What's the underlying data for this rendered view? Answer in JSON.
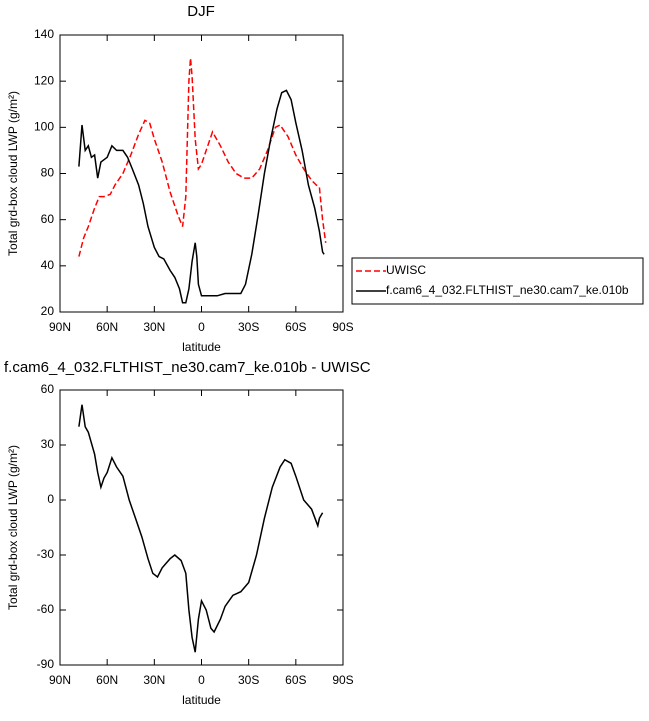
{
  "chart_data": [
    {
      "type": "line",
      "title": "DJF",
      "xlabel": "latitude",
      "ylabel": "Total grd-box cloud LWP (g/m²)",
      "xlim": [
        90,
        -90
      ],
      "xticks": [
        {
          "value": 90,
          "label": "90N"
        },
        {
          "value": 60,
          "label": "60N"
        },
        {
          "value": 30,
          "label": "30N"
        },
        0,
        {
          "value": -30,
          "label": "30S"
        },
        {
          "value": -60,
          "label": "60S"
        },
        {
          "value": -90,
          "label": "90S"
        }
      ],
      "ylim": [
        20,
        140
      ],
      "yticks": [
        20,
        40,
        60,
        80,
        100,
        120,
        140
      ],
      "series": [
        {
          "name": "UWISC",
          "color": "#ff0000",
          "dashed": true,
          "x": [
            78,
            75,
            72,
            68,
            65,
            62,
            58,
            55,
            50,
            45,
            40,
            36,
            33,
            30,
            25,
            20,
            15,
            12,
            10,
            8,
            7,
            6,
            4,
            2,
            0,
            -3,
            -7,
            -12,
            -17,
            -22,
            -27,
            -32,
            -37,
            -42,
            -47,
            -50,
            -55,
            -60,
            -65,
            -70,
            -73,
            -75,
            -77,
            -79
          ],
          "values": [
            44,
            52,
            57,
            65,
            70,
            70,
            71,
            75,
            80,
            88,
            97,
            103,
            102,
            95,
            85,
            72,
            62,
            57,
            70,
            120,
            130,
            122,
            95,
            82,
            84,
            90,
            98,
            92,
            85,
            80,
            78,
            78,
            82,
            90,
            100,
            101,
            96,
            88,
            82,
            77,
            75,
            74,
            60,
            50
          ]
        },
        {
          "name": "f.cam6_4_032.FLTHIST_ne30.cam7_ke.010b",
          "color": "#000000",
          "dashed": false,
          "x": [
            78,
            76,
            74,
            72,
            70,
            68,
            66,
            64,
            60,
            57,
            54,
            50,
            47,
            44,
            40,
            37,
            34,
            30,
            27,
            24,
            20,
            17,
            14,
            12,
            10,
            8,
            6,
            4,
            3,
            2,
            0,
            -3,
            -6,
            -10,
            -15,
            -20,
            -25,
            -28,
            -32,
            -36,
            -40,
            -44,
            -48,
            -51,
            -54,
            -57,
            -60,
            -64,
            -68,
            -72,
            -75,
            -77,
            -78
          ],
          "values": [
            83,
            101,
            90,
            92,
            87,
            88,
            78,
            85,
            87,
            92,
            90,
            90,
            87,
            82,
            75,
            67,
            57,
            48,
            44,
            43,
            38,
            35,
            30,
            24,
            24,
            30,
            42,
            50,
            44,
            32,
            27,
            27,
            27,
            27,
            28,
            28,
            28,
            32,
            45,
            62,
            80,
            95,
            108,
            115,
            116,
            112,
            102,
            90,
            75,
            65,
            55,
            46,
            45
          ]
        }
      ]
    },
    {
      "type": "line",
      "title": "f.cam6_4_032.FLTHIST_ne30.cam7_ke.010b - UWISC",
      "xlabel": "latitude",
      "ylabel": "Total grd-box cloud LWP (g/m²)",
      "xlim": [
        90,
        -90
      ],
      "xticks": [
        {
          "value": 90,
          "label": "90N"
        },
        {
          "value": 60,
          "label": "60N"
        },
        {
          "value": 30,
          "label": "30N"
        },
        0,
        {
          "value": -30,
          "label": "30S"
        },
        {
          "value": -60,
          "label": "60S"
        },
        {
          "value": -90,
          "label": "90S"
        }
      ],
      "ylim": [
        -90,
        60
      ],
      "yticks": [
        -90,
        -60,
        -30,
        0,
        30,
        60
      ],
      "series": [
        {
          "color": "#000000",
          "dashed": false,
          "x": [
            78,
            76,
            74,
            72,
            68,
            66,
            64,
            62,
            60,
            57,
            54,
            50,
            46,
            42,
            38,
            34,
            31,
            28,
            25,
            20,
            17,
            13,
            10,
            8,
            6,
            4,
            2,
            0,
            -3,
            -6,
            -8,
            -12,
            -15,
            -20,
            -25,
            -30,
            -35,
            -40,
            -45,
            -50,
            -53,
            -57,
            -60,
            -65,
            -70,
            -74,
            -75,
            -77
          ],
          "values": [
            40,
            52,
            40,
            37,
            25,
            15,
            7,
            12,
            15,
            23,
            18,
            13,
            0,
            -10,
            -20,
            -32,
            -40,
            -42,
            -37,
            -32,
            -30,
            -33,
            -40,
            -60,
            -75,
            -83,
            -65,
            -55,
            -60,
            -70,
            -72,
            -65,
            -58,
            -52,
            -50,
            -45,
            -30,
            -10,
            7,
            18,
            22,
            20,
            13,
            0,
            -5,
            -14,
            -10,
            -7
          ]
        }
      ]
    }
  ]
}
